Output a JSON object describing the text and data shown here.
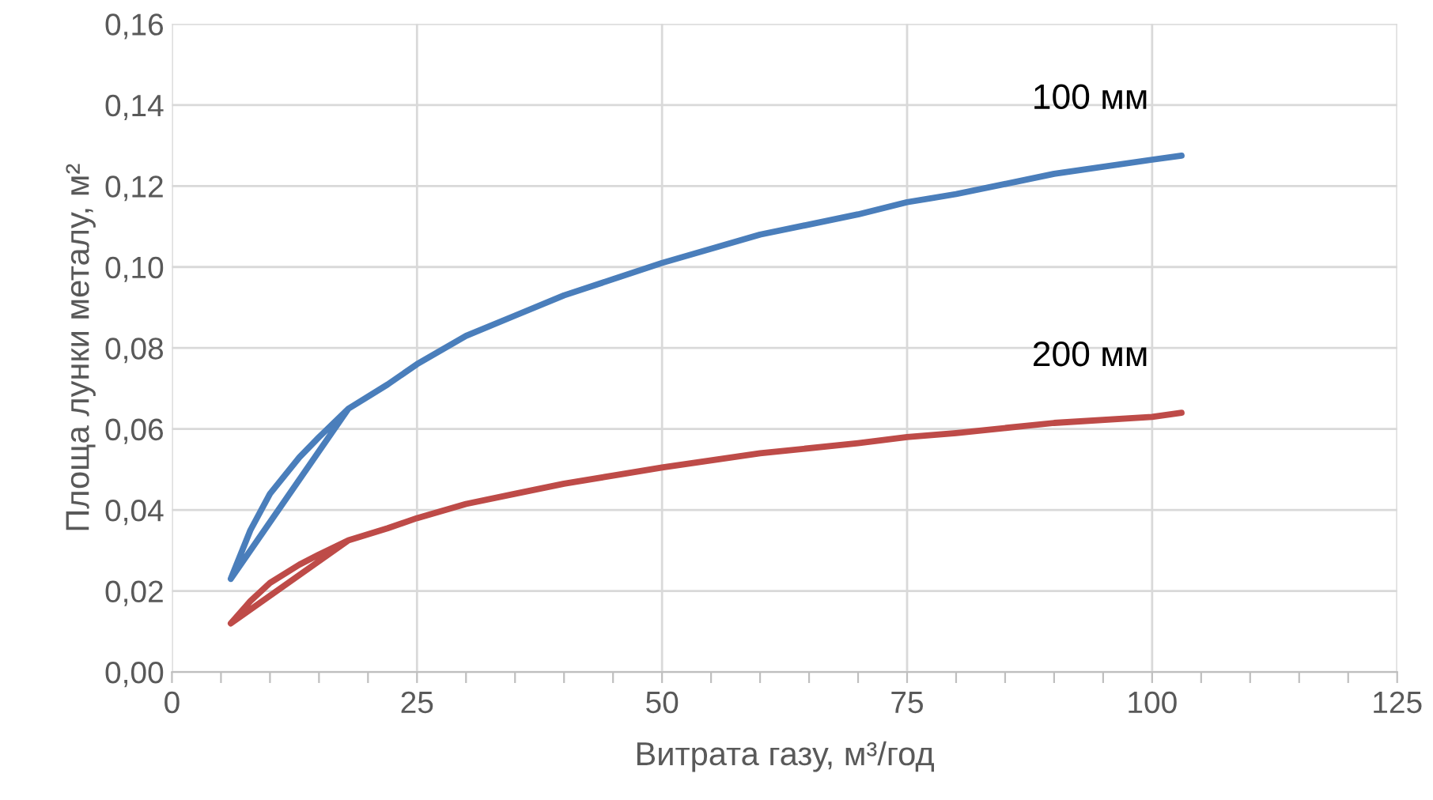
{
  "chart_data": {
    "type": "line",
    "xlabel": "Витрата газу, м³/год",
    "ylabel": "Площа лунки металу, м²",
    "xlim": [
      0,
      125
    ],
    "xticks": [
      0,
      {
        "value": 5,
        "label": null
      },
      {
        "value": 10,
        "label": null
      },
      {
        "value": 15,
        "label": null
      },
      {
        "value": 20,
        "label": null
      },
      25,
      {
        "value": 30,
        "label": null
      },
      {
        "value": 35,
        "label": null
      },
      {
        "value": 40,
        "label": null
      },
      {
        "value": 45,
        "label": null
      },
      50,
      {
        "value": 55,
        "label": null
      },
      {
        "value": 60,
        "label": null
      },
      {
        "value": 65,
        "label": null
      },
      {
        "value": 70,
        "label": null
      },
      75,
      {
        "value": 80,
        "label": null
      },
      {
        "value": 85,
        "label": null
      },
      {
        "value": 90,
        "label": null
      },
      {
        "value": 95,
        "label": null
      },
      100,
      {
        "value": 105,
        "label": null
      },
      {
        "value": 110,
        "label": null
      },
      {
        "value": 115,
        "label": null
      },
      {
        "value": 120,
        "label": null
      },
      125
    ],
    "ylim": [
      0,
      0.16
    ],
    "yticks": [
      {
        "value": 0,
        "label": "0,00"
      },
      {
        "value": 0.02,
        "label": "0,02"
      },
      {
        "value": 0.04,
        "label": "0,04"
      },
      {
        "value": 0.06,
        "label": "0,06"
      },
      {
        "value": 0.08,
        "label": "0,08"
      },
      {
        "value": 0.1,
        "label": "0,10"
      },
      {
        "value": 0.12,
        "label": "0,12"
      },
      {
        "value": 0.14,
        "label": "0,14"
      },
      {
        "value": 0.16,
        "label": "0,16"
      }
    ],
    "grid": true,
    "legend": false,
    "marker": "none",
    "line_style": "solid",
    "series": [
      {
        "name": "100 мм",
        "color": "#4a7ebb",
        "x": [
          18,
          6,
          8,
          10,
          13,
          15,
          18,
          22,
          25,
          30,
          35,
          40,
          45,
          50,
          60,
          70,
          75,
          80,
          90,
          100,
          103
        ],
        "values": [
          0.065,
          0.023,
          0.035,
          0.044,
          0.053,
          0.058,
          0.065,
          0.071,
          0.076,
          0.083,
          0.088,
          0.093,
          0.097,
          0.101,
          0.108,
          0.113,
          0.116,
          0.118,
          0.123,
          0.1265,
          0.1275
        ]
      },
      {
        "name": "200 мм",
        "color": "#be4b48",
        "x": [
          18,
          6,
          8,
          10,
          13,
          15,
          18,
          22,
          25,
          30,
          35,
          40,
          45,
          50,
          60,
          70,
          75,
          80,
          90,
          100,
          103
        ],
        "values": [
          0.0325,
          0.012,
          0.0175,
          0.022,
          0.0265,
          0.029,
          0.0325,
          0.0355,
          0.038,
          0.0415,
          0.044,
          0.0465,
          0.0485,
          0.0505,
          0.054,
          0.0565,
          0.058,
          0.059,
          0.0615,
          0.063,
          0.064
        ]
      }
    ]
  }
}
